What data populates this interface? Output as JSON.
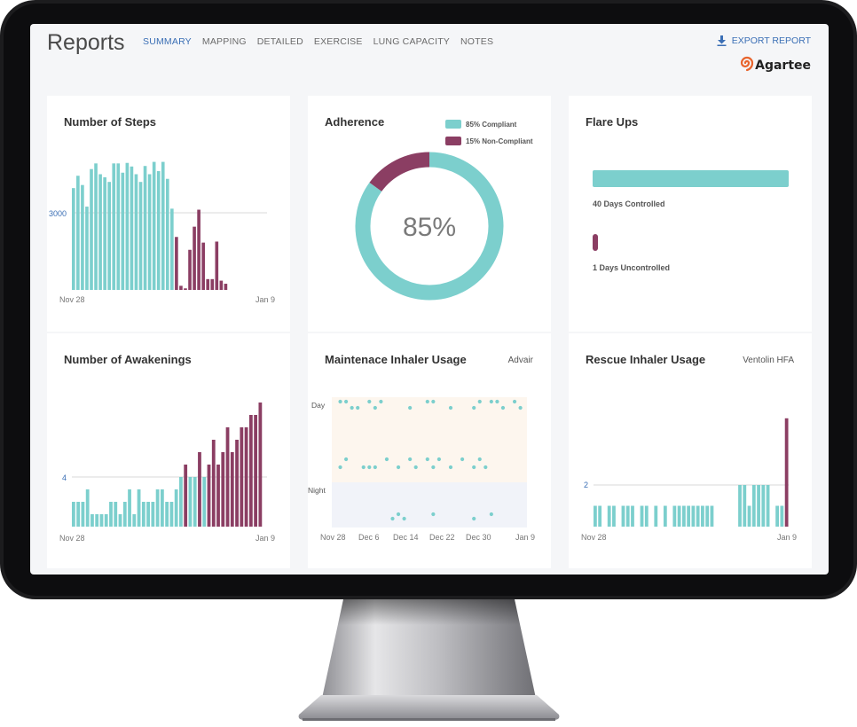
{
  "header": {
    "title": "Reports",
    "tabs": [
      {
        "label": "SUMMARY",
        "active": true
      },
      {
        "label": "MAPPING",
        "active": false
      },
      {
        "label": "DETAILED",
        "active": false
      },
      {
        "label": "EXERCISE",
        "active": false
      },
      {
        "label": "LUNG CAPACITY",
        "active": false
      },
      {
        "label": "NOTES",
        "active": false
      }
    ],
    "export_label": "EXPORT REPORT",
    "export_icon": "download-icon",
    "logo_text": "Agartee"
  },
  "colors": {
    "teal": "#7ccfcd",
    "maroon": "#8b3e63",
    "link": "#3b6fb5",
    "day_band": "#fdf6ee",
    "night_band": "#f1f3f9"
  },
  "steps": {
    "title": "Number of Steps",
    "ref_label": "3000",
    "x_start": "Nov 28",
    "x_end": "Jan 9"
  },
  "adherence": {
    "title": "Adherence",
    "center_label": "85%",
    "legend": [
      {
        "label": "85% Compliant",
        "color": "#7ccfcd"
      },
      {
        "label": "15% Non-Compliant",
        "color": "#8b3e63"
      }
    ]
  },
  "flare": {
    "title": "Flare Ups",
    "controlled_label": "40 Days Controlled",
    "uncontrolled_label": "1 Days Uncontrolled"
  },
  "awakenings": {
    "title": "Number of Awakenings",
    "ref_label": "4",
    "x_start": "Nov 28",
    "x_end": "Jan 9"
  },
  "maintenance": {
    "title": "Maintenace Inhaler Usage",
    "medication": "Advair",
    "y_day": "Day",
    "y_night": "Night",
    "x_labels": [
      "Nov 28",
      "Dec 6",
      "Dec 14",
      "Dec 22",
      "Dec 30",
      "Jan 9"
    ]
  },
  "rescue": {
    "title": "Rescue Inhaler Usage",
    "medication": "Ventolin HFA",
    "ref_label": "2",
    "x_start": "Nov 28",
    "x_end": "Jan 9"
  },
  "chart_data": [
    {
      "type": "bar",
      "title": "Number of Steps",
      "ref_line": 3000,
      "ylim": [
        0,
        5600
      ],
      "x": [
        "Nov 28",
        "",
        "",
        "",
        "",
        "",
        "",
        "",
        "",
        "",
        "",
        "",
        "",
        "",
        "",
        "",
        "",
        "",
        "",
        "",
        "",
        "",
        "",
        "",
        "",
        "",
        "",
        "",
        "",
        "",
        "",
        "",
        "",
        "",
        "",
        "",
        "",
        "",
        "",
        "",
        "",
        "",
        "Jan 9"
      ],
      "series": [
        {
          "values": [
            3960,
            4440,
            4080,
            3240,
            4700,
            4920,
            4500,
            4380,
            4200,
            4920,
            4920,
            4560,
            4940,
            4800,
            4500,
            4200,
            4820,
            4500,
            4980,
            4620,
            4980,
            4320,
            3160,
            0,
            0,
            0,
            0,
            0,
            0,
            0,
            0,
            0,
            0,
            0,
            0,
            0,
            0,
            0,
            0,
            0,
            0,
            0,
            0
          ]
        },
        {
          "values": [
            0,
            0,
            0,
            0,
            0,
            0,
            0,
            0,
            0,
            0,
            0,
            0,
            0,
            0,
            0,
            0,
            0,
            0,
            0,
            0,
            0,
            0,
            0,
            2060,
            160,
            60,
            1560,
            2460,
            3120,
            1840,
            420,
            420,
            1880,
            360,
            240,
            0,
            0,
            0,
            0,
            0,
            0,
            0,
            0
          ]
        }
      ]
    },
    {
      "type": "pie",
      "title": "Adherence",
      "slices": [
        {
          "label": "85% Compliant",
          "value": 85
        },
        {
          "label": "15% Non-Compliant",
          "value": 15
        }
      ]
    },
    {
      "type": "bar",
      "title": "Flare Ups",
      "categories": [
        "Controlled",
        "Uncontrolled"
      ],
      "values": [
        40,
        1
      ]
    },
    {
      "type": "bar",
      "title": "Number of Awakenings",
      "ref_line": 4,
      "ylim": [
        0,
        10
      ],
      "series": [
        {
          "values": [
            2,
            2,
            2,
            3,
            1,
            1,
            1,
            1,
            2,
            2,
            1,
            2,
            3,
            1,
            3,
            2,
            2,
            2,
            3,
            3,
            2,
            2,
            3,
            4,
            0,
            4,
            4,
            0,
            4,
            0,
            0,
            0,
            0,
            0,
            0,
            0,
            0,
            0,
            0,
            0,
            0,
            0
          ]
        },
        {
          "values": [
            0,
            0,
            0,
            0,
            0,
            0,
            0,
            0,
            0,
            0,
            0,
            0,
            0,
            0,
            0,
            0,
            0,
            0,
            0,
            0,
            0,
            0,
            0,
            0,
            5,
            0,
            0,
            6,
            0,
            5,
            7,
            5,
            6,
            8,
            6,
            7,
            8,
            8,
            9,
            9,
            10,
            0
          ]
        }
      ]
    },
    {
      "type": "scatter",
      "title": "Maintenace Inhaler Usage",
      "x_labels": [
        "Nov 28",
        "Dec 6",
        "Dec 14",
        "Dec 22",
        "Dec 30",
        "Jan 9"
      ],
      "day_am": [
        1,
        2,
        3,
        4,
        6,
        7,
        8,
        13,
        16,
        17,
        20,
        24,
        25,
        27,
        28,
        29,
        31,
        32
      ],
      "day_am_offset": [
        0,
        0,
        1,
        1,
        0,
        1,
        0,
        1,
        0,
        0,
        1,
        1,
        0,
        0,
        0,
        1,
        0,
        1
      ],
      "day_pm": [
        1,
        2,
        5,
        6,
        7,
        9,
        11,
        13,
        14,
        16,
        17,
        18,
        20,
        22,
        24,
        25,
        26
      ],
      "day_pm_offset": [
        1,
        0,
        1,
        1,
        1,
        0,
        1,
        0,
        1,
        0,
        1,
        0,
        1,
        0,
        1,
        0,
        1
      ],
      "night": [
        10,
        11,
        12,
        17,
        24,
        27
      ]
    },
    {
      "type": "bar",
      "title": "Rescue Inhaler Usage",
      "ref_line": 2,
      "ylim": [
        0,
        6
      ],
      "series": [
        {
          "values": [
            1,
            1,
            0,
            1,
            1,
            0,
            1,
            1,
            1,
            0,
            1,
            1,
            0,
            1,
            0,
            1,
            0,
            1,
            1,
            1,
            1,
            1,
            1,
            1,
            1,
            1,
            0,
            0,
            0,
            0,
            0,
            2,
            2,
            1,
            2,
            2,
            2,
            2,
            0,
            1,
            1,
            0
          ]
        },
        {
          "values": [
            0,
            0,
            0,
            0,
            0,
            0,
            0,
            0,
            0,
            0,
            0,
            0,
            0,
            0,
            0,
            0,
            0,
            0,
            0,
            0,
            0,
            0,
            0,
            0,
            0,
            0,
            0,
            0,
            0,
            0,
            0,
            0,
            0,
            0,
            0,
            0,
            0,
            0,
            0,
            0,
            0,
            5.2
          ]
        }
      ]
    }
  ]
}
